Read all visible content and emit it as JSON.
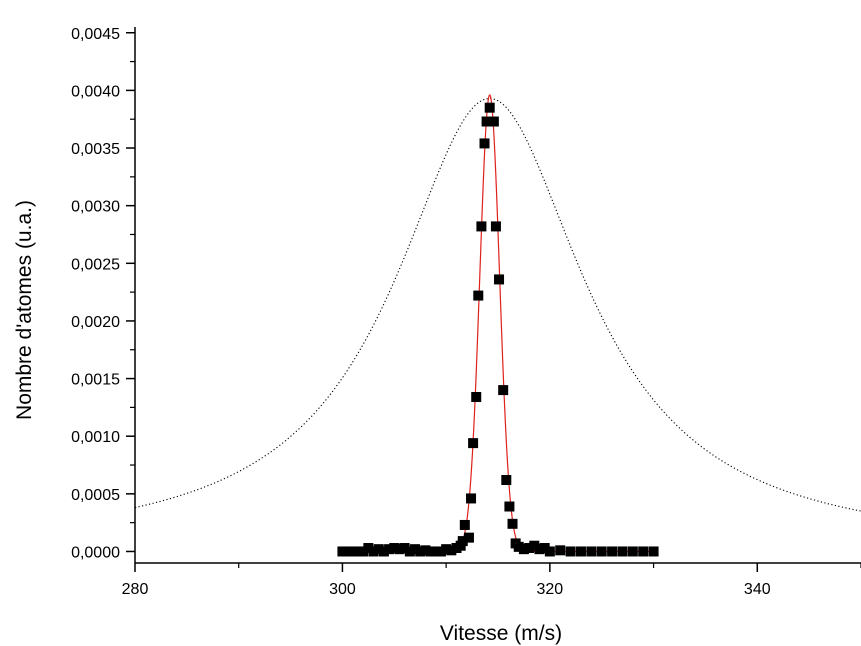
{
  "chart_data": {
    "type": "scatter",
    "title": "",
    "xlabel": "Vitesse (m/s)",
    "ylabel": "Nombre d'atomes (u.a.)",
    "xlim": [
      280,
      350
    ],
    "ylim": [
      -0.0001,
      0.00455
    ],
    "grid": false,
    "legend": "none",
    "x_ticks": [
      "280",
      "300",
      "320",
      "340"
    ],
    "y_ticks": [
      "0,0000",
      "0,0005",
      "0,0010",
      "0,0015",
      "0,0020",
      "0,0025",
      "0,0030",
      "0,0035",
      "0,0040",
      "0,0045"
    ],
    "series": [
      {
        "kind": "scatter",
        "color": "#000000",
        "points": [
          [
            300.0,
            0.0
          ],
          [
            300.5,
            0.0
          ],
          [
            301.0,
            0.0
          ],
          [
            301.5,
            0.0
          ],
          [
            302.0,
            0.0
          ],
          [
            302.5,
            3e-05
          ],
          [
            303.0,
            0.0
          ],
          [
            303.5,
            2e-05
          ],
          [
            304.0,
            0.0
          ],
          [
            304.5,
            2e-05
          ],
          [
            305.0,
            3e-05
          ],
          [
            305.5,
            2e-05
          ],
          [
            306.0,
            3e-05
          ],
          [
            306.5,
            0.0
          ],
          [
            307.0,
            2e-05
          ],
          [
            307.5,
            0.0
          ],
          [
            308.0,
            1e-05
          ],
          [
            308.5,
            0.0
          ],
          [
            309.0,
            0.0
          ],
          [
            309.5,
            0.0
          ],
          [
            310.0,
            2e-05
          ],
          [
            310.5,
            1e-05
          ],
          [
            311.0,
            3e-05
          ],
          [
            311.4,
            5e-05
          ],
          [
            311.6,
            9e-05
          ],
          [
            311.8,
            0.00023
          ],
          [
            312.2,
            0.00012
          ],
          [
            312.4,
            0.00046
          ],
          [
            312.6,
            0.00094
          ],
          [
            312.9,
            0.00134
          ],
          [
            313.1,
            0.00222
          ],
          [
            313.4,
            0.00282
          ],
          [
            313.7,
            0.00354
          ],
          [
            313.9,
            0.00373
          ],
          [
            314.2,
            0.00385
          ],
          [
            314.6,
            0.00373
          ],
          [
            314.8,
            0.00282
          ],
          [
            315.1,
            0.00236
          ],
          [
            315.5,
            0.0014
          ],
          [
            315.8,
            0.00062
          ],
          [
            316.1,
            0.00039
          ],
          [
            316.4,
            0.00024
          ],
          [
            316.7,
            7e-05
          ],
          [
            317.0,
            4e-05
          ],
          [
            317.5,
            2e-05
          ],
          [
            318.0,
            3e-05
          ],
          [
            318.5,
            5e-05
          ],
          [
            319.0,
            2e-05
          ],
          [
            319.5,
            3e-05
          ],
          [
            320.0,
            0.0
          ],
          [
            321.0,
            1e-05
          ],
          [
            322.0,
            0.0
          ],
          [
            323.0,
            0.0
          ],
          [
            324.0,
            0.0
          ],
          [
            325.0,
            0.0
          ],
          [
            326.0,
            0.0
          ],
          [
            327.0,
            0.0
          ],
          [
            328.0,
            0.0
          ],
          [
            329.0,
            0.0
          ],
          [
            330.0,
            0.0
          ]
        ]
      },
      {
        "kind": "line",
        "style": "solid",
        "color": "#e0201a",
        "function": "gaussian",
        "x_range": [
          300,
          330
        ],
        "center": 314.2,
        "amplitude": 0.00396,
        "sigma": 0.95
      },
      {
        "kind": "line",
        "style": "dotted",
        "color": "#000000",
        "function": "lorentzian",
        "x_range": [
          280,
          350
        ],
        "center": 314.2,
        "amplitude": 0.00393,
        "hwhm": 11.2
      }
    ]
  }
}
